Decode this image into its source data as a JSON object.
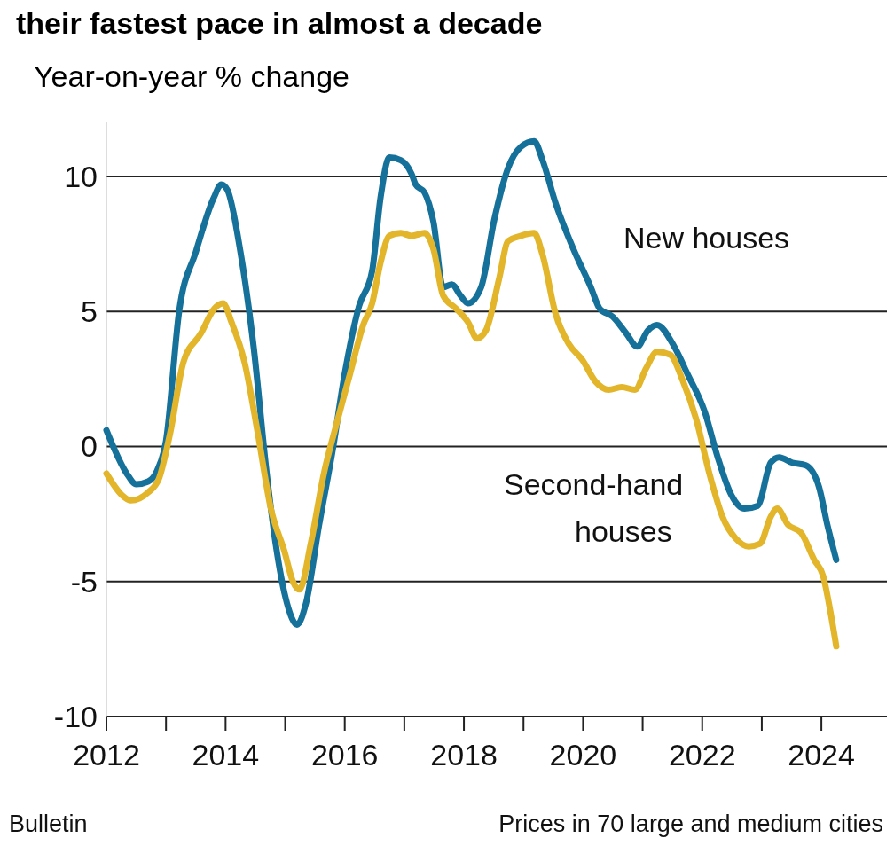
{
  "chart_data": {
    "type": "line",
    "title": "their fastest pace in almost a decade",
    "ylabel": "Year-on-year % change",
    "annotations": [
      "Bulletin",
      "Prices in 70 large and medium cities"
    ],
    "xlim": [
      2012,
      2025.1
    ],
    "xticks": [
      2012,
      {
        "value": 2013,
        "label": null
      },
      2014,
      {
        "value": 2015,
        "label": null
      },
      2016,
      {
        "value": 2017,
        "label": null
      },
      2018,
      {
        "value": 2019,
        "label": null
      },
      2020,
      {
        "value": 2021,
        "label": null
      },
      2022,
      {
        "value": 2023,
        "label": null
      },
      2024
    ],
    "ylim": [
      -10,
      12
    ],
    "yticks": [
      -10,
      -5,
      0,
      5,
      10
    ],
    "grid": "y",
    "legend": false,
    "line_style": "solid",
    "marker": "none",
    "series": [
      {
        "name": "New houses",
        "color": "#15709a",
        "x": [
          2012.0,
          2012.34,
          2012.5,
          2012.7,
          2012.85,
          2013.0,
          2013.22,
          2013.5,
          2013.8,
          2013.93,
          2014.03,
          2014.25,
          2014.47,
          2014.69,
          2014.84,
          2015.03,
          2015.2,
          2015.35,
          2015.57,
          2015.8,
          2016.0,
          2016.24,
          2016.46,
          2016.6,
          2016.75,
          2016.94,
          2017.12,
          2017.19,
          2017.34,
          2017.49,
          2017.65,
          2017.8,
          2017.94,
          2018.07,
          2018.29,
          2018.51,
          2018.74,
          2018.96,
          2019.18,
          2019.32,
          2019.54,
          2019.84,
          2020.13,
          2020.28,
          2020.5,
          2020.72,
          2020.91,
          2021.09,
          2021.24,
          2021.53,
          2021.75,
          2022.04,
          2022.26,
          2022.49,
          2022.71,
          2022.93,
          2023.15,
          2023.29,
          2023.51,
          2023.74,
          2023.96,
          2024.1,
          2024.25
        ],
        "values": [
          0.6,
          -1.0,
          -1.4,
          -1.3,
          -0.9,
          0.2,
          5.0,
          7.2,
          9.2,
          9.7,
          9.5,
          7.2,
          3.7,
          -1.0,
          -3.6,
          -5.8,
          -6.6,
          -5.8,
          -2.9,
          -0.1,
          2.7,
          5.2,
          6.5,
          9.2,
          10.7,
          10.6,
          10.1,
          9.7,
          9.4,
          8.3,
          5.9,
          6.0,
          5.6,
          5.3,
          5.9,
          8.4,
          10.3,
          11.1,
          11.3,
          10.6,
          9.0,
          7.3,
          5.9,
          5.1,
          4.8,
          4.2,
          3.7,
          4.3,
          4.5,
          3.7,
          2.7,
          1.3,
          -0.4,
          -1.8,
          -2.3,
          -2.2,
          -0.6,
          -0.4,
          -0.6,
          -0.7,
          -1.5,
          -2.9,
          -4.2
        ]
      },
      {
        "name": "Second-hand houses",
        "color": "#e2b52a",
        "x": [
          2012.0,
          2012.26,
          2012.41,
          2012.7,
          2012.88,
          2013.07,
          2013.29,
          2013.59,
          2013.81,
          2013.96,
          2014.1,
          2014.32,
          2014.54,
          2014.76,
          2014.99,
          2015.13,
          2015.24,
          2015.43,
          2015.65,
          2015.87,
          2016.09,
          2016.31,
          2016.46,
          2016.6,
          2016.75,
          2016.94,
          2017.12,
          2017.34,
          2017.49,
          2017.65,
          2017.87,
          2018.07,
          2018.22,
          2018.37,
          2018.59,
          2018.74,
          2018.96,
          2019.18,
          2019.32,
          2019.54,
          2019.76,
          2019.99,
          2020.21,
          2020.43,
          2020.65,
          2020.87,
          2021.06,
          2021.24,
          2021.46,
          2021.68,
          2021.9,
          2022.12,
          2022.34,
          2022.56,
          2022.78,
          2022.97,
          2023.15,
          2023.26,
          2023.44,
          2023.66,
          2023.88,
          2024.03,
          2024.15,
          2024.25
        ],
        "values": [
          -1.0,
          -1.8,
          -2.0,
          -1.7,
          -1.2,
          0.5,
          3.1,
          4.2,
          5.1,
          5.3,
          4.6,
          3.1,
          0.5,
          -2.3,
          -3.9,
          -5.0,
          -5.3,
          -3.6,
          -1.0,
          0.9,
          2.7,
          4.5,
          5.3,
          6.8,
          7.8,
          7.9,
          7.8,
          7.9,
          7.3,
          5.6,
          5.1,
          4.6,
          4.0,
          4.3,
          6.2,
          7.6,
          7.8,
          7.9,
          7.1,
          4.9,
          3.8,
          3.2,
          2.4,
          2.1,
          2.2,
          2.1,
          2.9,
          3.5,
          3.4,
          2.4,
          1.0,
          -1.0,
          -2.6,
          -3.4,
          -3.7,
          -3.6,
          -2.6,
          -2.3,
          -2.9,
          -3.2,
          -4.2,
          -4.8,
          -6.1,
          -7.4
        ]
      }
    ]
  }
}
